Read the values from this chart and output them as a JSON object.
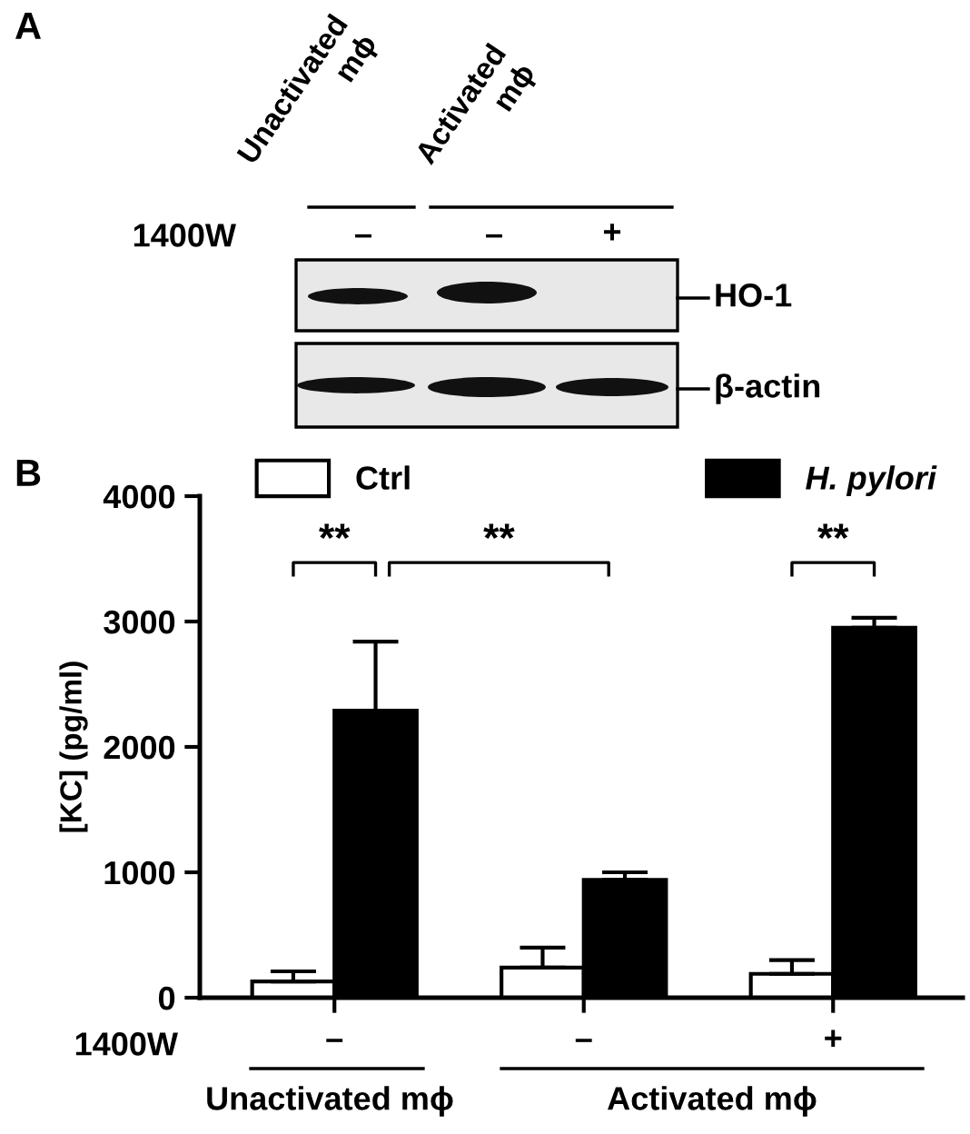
{
  "chart_data": [
    {
      "type": "other",
      "title": "A",
      "annotations": [
        "Unactivated\nmϕ",
        "Activated\nmϕ",
        "1400W",
        "–",
        "–",
        "+",
        "HO-1",
        "β-actin"
      ]
    },
    {
      "type": "bar",
      "title": "B",
      "ylabel": "[KC] (pg/ml)",
      "categories": [
        "–",
        "–",
        "+"
      ],
      "series": [
        {
          "name": "Ctrl",
          "color": "#ffffff",
          "values": [
            130,
            240,
            190
          ],
          "errors": [
            [
              130,
              210
            ],
            [
              240,
              400
            ],
            [
              190,
              300
            ]
          ]
        },
        {
          "name": "H. pylori",
          "color": "#000000",
          "values": [
            2290,
            940,
            2950
          ],
          "errors": [
            [
              2290,
              2840
            ],
            [
              940,
              1000
            ],
            [
              2950,
              3030
            ]
          ]
        }
      ],
      "ylim": [
        0,
        4000
      ],
      "yticks": [
        0,
        1000,
        2000,
        3000,
        4000
      ],
      "grid": false,
      "legend": "top",
      "annotations": [
        "**",
        "**",
        "**",
        "1400W",
        "Unactivated mϕ",
        "Activated mϕ"
      ]
    }
  ]
}
